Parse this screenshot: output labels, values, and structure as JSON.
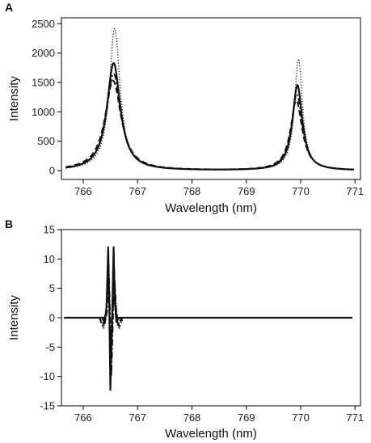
{
  "chart_data": [
    {
      "type": "line",
      "panel_label": "A",
      "xlabel": "Wavelength (nm)",
      "ylabel": "Intensity",
      "xlim": [
        765.6,
        771.1
      ],
      "ylim": [
        -150,
        2600
      ],
      "x_ticks": [
        766,
        767,
        768,
        769,
        770,
        771
      ],
      "y_ticks": [
        0,
        500,
        1000,
        1500,
        2000,
        2500
      ],
      "grid": false,
      "legend": "none",
      "series": [
        {
          "style": "dotted",
          "peaks": [
            {
              "x": 766.58,
              "y": 2420,
              "w": 0.12
            },
            {
              "x": 769.96,
              "y": 1900,
              "w": 0.09
            }
          ]
        },
        {
          "style": "solid",
          "peaks": [
            {
              "x": 766.56,
              "y": 1830,
              "w": 0.15
            },
            {
              "x": 769.94,
              "y": 1450,
              "w": 0.11
            }
          ]
        },
        {
          "style": "dash-dot",
          "peaks": [
            {
              "x": 766.56,
              "y": 1650,
              "w": 0.16
            },
            {
              "x": 769.93,
              "y": 1300,
              "w": 0.12
            }
          ]
        },
        {
          "style": "dashed",
          "peaks": [
            {
              "x": 766.55,
              "y": 1530,
              "w": 0.18
            },
            {
              "x": 769.92,
              "y": 1190,
              "w": 0.13
            }
          ]
        }
      ]
    },
    {
      "type": "line",
      "panel_label": "B",
      "xlabel": "Wavelength (nm)",
      "ylabel": "Intensity",
      "xlim": [
        765.6,
        771.1
      ],
      "ylim": [
        -15,
        15
      ],
      "x_ticks": [
        766,
        767,
        768,
        769,
        770,
        771
      ],
      "y_ticks": [
        -15,
        -10,
        -5,
        0,
        5,
        10,
        15
      ],
      "grid": false,
      "legend": "none",
      "series": [
        {
          "style": "solid",
          "points": [
            [
              765.65,
              0
            ],
            [
              766.38,
              0
            ],
            [
              766.4,
              -0.8
            ],
            [
              766.43,
              2
            ],
            [
              766.46,
              12
            ],
            [
              766.48,
              2
            ],
            [
              766.5,
              -12.3
            ],
            [
              766.52,
              -4
            ],
            [
              766.54,
              3
            ],
            [
              766.56,
              12
            ],
            [
              766.58,
              3
            ],
            [
              766.61,
              -0.7
            ],
            [
              766.66,
              0
            ],
            [
              770.95,
              0
            ]
          ]
        },
        {
          "style": "dashed",
          "points": [
            [
              765.65,
              0
            ],
            [
              766.3,
              0
            ],
            [
              766.36,
              -1.5
            ],
            [
              766.42,
              1
            ],
            [
              766.46,
              7.5
            ],
            [
              766.49,
              0
            ],
            [
              766.51,
              -8.5
            ],
            [
              766.54,
              0
            ],
            [
              766.57,
              7
            ],
            [
              766.61,
              1
            ],
            [
              766.66,
              -1.5
            ],
            [
              766.72,
              0
            ],
            [
              770.95,
              0
            ]
          ]
        },
        {
          "style": "dash-dot",
          "points": [
            [
              765.65,
              0
            ],
            [
              766.34,
              0
            ],
            [
              766.4,
              -1
            ],
            [
              766.44,
              1
            ],
            [
              766.47,
              9
            ],
            [
              766.5,
              -1
            ],
            [
              766.52,
              -10
            ],
            [
              766.55,
              0
            ],
            [
              766.57,
              8.5
            ],
            [
              766.61,
              1
            ],
            [
              766.64,
              -1.5
            ],
            [
              766.7,
              0
            ],
            [
              770.95,
              0
            ]
          ]
        },
        {
          "style": "dotted",
          "points": [
            [
              765.65,
              0
            ],
            [
              766.32,
              0
            ],
            [
              766.38,
              -2
            ],
            [
              766.43,
              1.5
            ],
            [
              766.46,
              6
            ],
            [
              766.49,
              -1.5
            ],
            [
              766.51,
              -7
            ],
            [
              766.54,
              -1
            ],
            [
              766.57,
              6
            ],
            [
              766.61,
              1.5
            ],
            [
              766.66,
              -2
            ],
            [
              766.74,
              0
            ],
            [
              770.95,
              0
            ]
          ]
        }
      ]
    }
  ]
}
